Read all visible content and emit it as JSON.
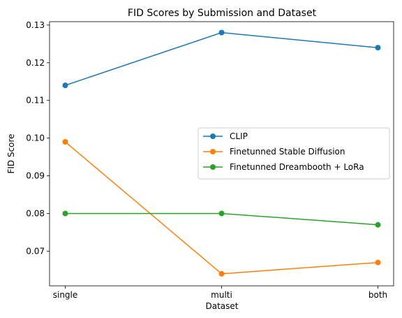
{
  "chart_data": {
    "type": "line",
    "title": "FID Scores by Submission and Dataset",
    "xlabel": "Dataset",
    "ylabel": "FID Score",
    "categories": [
      "single",
      "multi",
      "both"
    ],
    "ylim": [
      0.0608,
      0.1309
    ],
    "yticks": [
      0.07,
      0.08,
      0.09,
      0.1,
      0.11,
      0.12,
      0.13
    ],
    "ytick_labels": [
      "0.07",
      "0.08",
      "0.09",
      "0.10",
      "0.11",
      "0.12",
      "0.13"
    ],
    "grid": false,
    "legend_position": "center-right",
    "series": [
      {
        "name": "CLIP",
        "values": [
          0.114,
          0.128,
          0.124
        ],
        "color": "#1f77b4"
      },
      {
        "name": "Finetunned Stable Diffusion",
        "values": [
          0.099,
          0.064,
          0.067
        ],
        "color": "#ff7f0e"
      },
      {
        "name": "Finetunned Dreambooth + LoRa",
        "values": [
          0.08,
          0.08,
          0.077
        ],
        "color": "#2ca02c"
      }
    ]
  }
}
